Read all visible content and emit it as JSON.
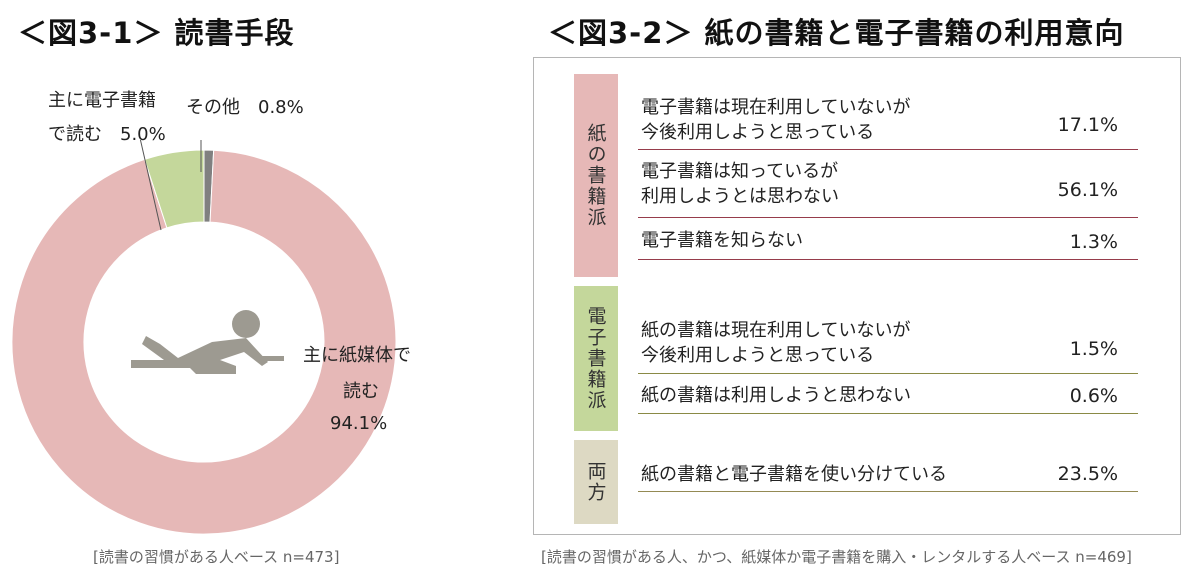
{
  "titles": {
    "left": "＜図3-1＞ 読書手段",
    "right": "＜図3-2＞ 紙の書籍と電子書籍の利用意向"
  },
  "chart_data": [
    {
      "type": "pie",
      "style": "donut",
      "title": "＜図3-1＞ 読書手段",
      "slices": [
        {
          "name": "主に紙媒体で読む",
          "value": 94.1,
          "color": "#e6b8b7",
          "label_lines": [
            "主に紙媒体で",
            "読む",
            "94.1%"
          ]
        },
        {
          "name": "主に電子書籍で読む",
          "value": 5.0,
          "color": "#c4d79b",
          "label_lines": [
            "主に電子書籍",
            "で読む　5.0%"
          ]
        },
        {
          "name": "その他",
          "value": 0.8,
          "color": "#808080",
          "label_lines": [
            "その他　0.8%"
          ]
        }
      ],
      "icon": "person-reading-icon",
      "note": "[読書の習慣がある人ベース n=473]"
    },
    {
      "type": "table",
      "title": "＜図3-2＞ 紙の書籍と電子書籍の利用意向",
      "groups": [
        {
          "label": "紙の書籍派",
          "color": "#e6b8b7",
          "line_color": "#963c4b",
          "rows": [
            {
              "lines": [
                "電子書籍は現在利用していないが",
                "今後利用しようと思っている"
              ],
              "value": "17.1%"
            },
            {
              "lines": [
                "電子書籍は知っているが",
                "利用しようとは思わない"
              ],
              "value": "56.1%"
            },
            {
              "lines": [
                "電子書籍を知らない"
              ],
              "value": "1.3%"
            }
          ]
        },
        {
          "label": "電子書籍派",
          "color": "#c4d79b",
          "line_color": "#8a8a45",
          "rows": [
            {
              "lines": [
                "紙の書籍は現在利用していないが",
                "今後利用しようと思っている"
              ],
              "value": "1.5%"
            },
            {
              "lines": [
                "紙の書籍は利用しようと思わない"
              ],
              "value": "0.6%"
            }
          ]
        },
        {
          "label": "両方",
          "color": "#ddd9c3",
          "line_color": "#948a54",
          "rows": [
            {
              "lines": [
                "紙の書籍と電子書籍を使い分けている"
              ],
              "value": "23.5%"
            }
          ]
        }
      ],
      "note": "[読書の習慣がある人、かつ、紙媒体か電子書籍を購入・レンタルする人ベース n=469]"
    }
  ]
}
